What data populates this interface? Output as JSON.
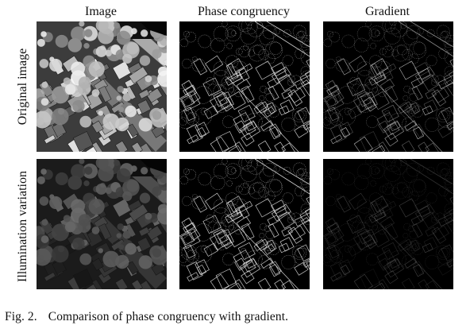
{
  "figure": {
    "columns": [
      "Image",
      "Phase congruency",
      "Gradient"
    ],
    "rows": [
      "Original image",
      "Illumination variation"
    ],
    "caption_label": "Fig. 2.",
    "caption_text": "Comparison of phase congruency with gradient."
  },
  "colors": {
    "background": "#ffffff",
    "text": "#111111",
    "panel_dark": "#000000"
  }
}
